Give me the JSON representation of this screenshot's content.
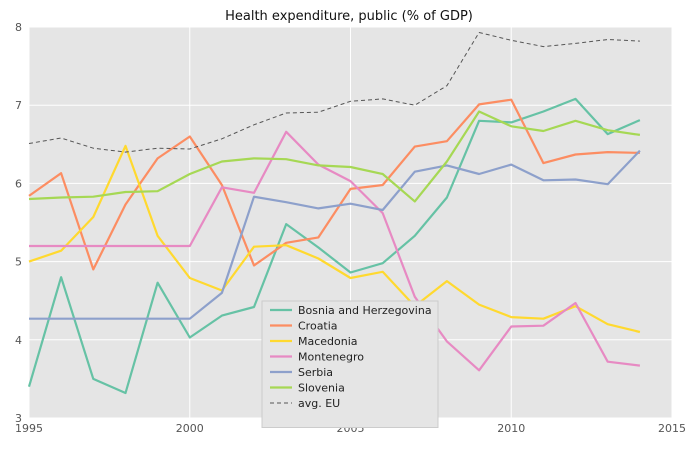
{
  "chart_data": {
    "type": "line",
    "title": "Health expenditure, public (% of GDP)",
    "xlabel": "",
    "ylabel": "",
    "xlim": [
      1995,
      2015
    ],
    "ylim": [
      3,
      8
    ],
    "x_ticks": [
      1995,
      2000,
      2005,
      2010,
      2015
    ],
    "y_ticks": [
      3,
      4,
      5,
      6,
      7,
      8
    ],
    "grid": true,
    "background": "#e5e5e5",
    "legend_position": "bottom-center",
    "x": [
      1995,
      1996,
      1997,
      1998,
      1999,
      2000,
      2001,
      2002,
      2003,
      2004,
      2005,
      2006,
      2007,
      2008,
      2009,
      2010,
      2011,
      2012,
      2013,
      2014
    ],
    "series": [
      {
        "name": "Bosnia and Herzegovina",
        "color": "#66c2a5",
        "style": "solid",
        "values": [
          3.4,
          4.8,
          3.5,
          3.32,
          4.73,
          4.03,
          4.31,
          4.42,
          5.48,
          5.18,
          4.86,
          4.98,
          5.33,
          5.82,
          6.8,
          6.78,
          6.92,
          7.08,
          6.63,
          6.81
        ]
      },
      {
        "name": "Croatia",
        "color": "#fc8d62",
        "style": "solid",
        "values": [
          5.84,
          6.13,
          4.9,
          5.73,
          6.32,
          6.6,
          5.98,
          4.95,
          5.24,
          5.31,
          5.93,
          5.98,
          6.47,
          6.54,
          7.01,
          7.07,
          6.26,
          6.37,
          6.4,
          6.39
        ]
      },
      {
        "name": "Macedonia",
        "color": "#ffd92f",
        "style": "solid",
        "values": [
          5.0,
          5.14,
          5.57,
          6.48,
          5.33,
          4.79,
          4.63,
          5.19,
          5.21,
          5.04,
          4.79,
          4.87,
          4.43,
          4.75,
          4.45,
          4.29,
          4.27,
          4.43,
          4.2,
          4.1
        ]
      },
      {
        "name": "Montenegro",
        "color": "#e78ac3",
        "style": "solid",
        "values": [
          5.2,
          5.2,
          5.2,
          5.2,
          5.2,
          5.2,
          5.95,
          5.88,
          6.66,
          6.24,
          6.03,
          5.62,
          4.55,
          3.98,
          3.61,
          4.17,
          4.18,
          4.47,
          3.72,
          3.67
        ]
      },
      {
        "name": "Serbia",
        "color": "#8da0cb",
        "style": "solid",
        "values": [
          4.27,
          4.27,
          4.27,
          4.27,
          4.27,
          4.27,
          4.6,
          5.83,
          5.76,
          5.68,
          5.74,
          5.66,
          6.15,
          6.23,
          6.12,
          6.24,
          6.04,
          6.05,
          5.99,
          6.42
        ]
      },
      {
        "name": "Slovenia",
        "color": "#a6d854",
        "style": "solid",
        "values": [
          5.8,
          5.82,
          5.83,
          5.89,
          5.9,
          6.12,
          6.28,
          6.32,
          6.31,
          6.23,
          6.21,
          6.12,
          5.77,
          6.28,
          6.92,
          6.73,
          6.67,
          6.8,
          6.68,
          6.62
        ]
      },
      {
        "name": "avg. EU",
        "color": "#555555",
        "style": "dashed",
        "values": [
          6.51,
          6.58,
          6.45,
          6.4,
          6.45,
          6.44,
          6.57,
          6.75,
          6.9,
          6.91,
          7.05,
          7.08,
          7.0,
          7.25,
          7.93,
          7.83,
          7.75,
          7.79,
          7.84,
          7.82
        ]
      }
    ]
  }
}
